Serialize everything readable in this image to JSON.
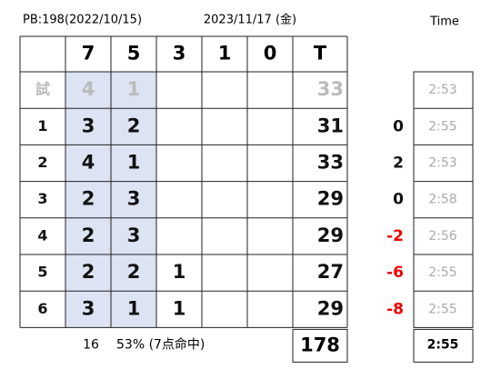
{
  "header": {
    "pb": "PB:198(2022/10/15)",
    "date": "2023/11/17 (金)",
    "time_label": "Time"
  },
  "table": {
    "columns": [
      "7",
      "5",
      "3",
      "1",
      "0"
    ],
    "total_header": "T",
    "rows": [
      {
        "label": "試",
        "counts": {
          "7": 4,
          "5": 1
        },
        "total": 33,
        "time": "2:53"
      },
      {
        "label": "1",
        "counts": {
          "7": 3,
          "5": 2
        },
        "total": 31,
        "diff": 0,
        "time": "2:55"
      },
      {
        "label": "2",
        "counts": {
          "7": 4,
          "5": 1
        },
        "total": 33,
        "diff": 2,
        "time": "2:53"
      },
      {
        "label": "3",
        "counts": {
          "7": 2,
          "5": 3
        },
        "total": 29,
        "diff": 0,
        "time": "2:58"
      },
      {
        "label": "4",
        "counts": {
          "7": 2,
          "5": 3
        },
        "total": 29,
        "diff": -2,
        "time": "2:56"
      },
      {
        "label": "5",
        "counts": {
          "7": 2,
          "5": 2,
          "3": 1
        },
        "total": 27,
        "diff": -6,
        "time": "2:55"
      },
      {
        "label": "6",
        "counts": {
          "7": 3,
          "5": 1,
          "3": 1
        },
        "total": 29,
        "diff": -8,
        "time": "2:55"
      }
    ]
  },
  "footer": {
    "hits": 16,
    "rate": "53% (7点命中)",
    "total": 178,
    "time": "2:55"
  }
}
